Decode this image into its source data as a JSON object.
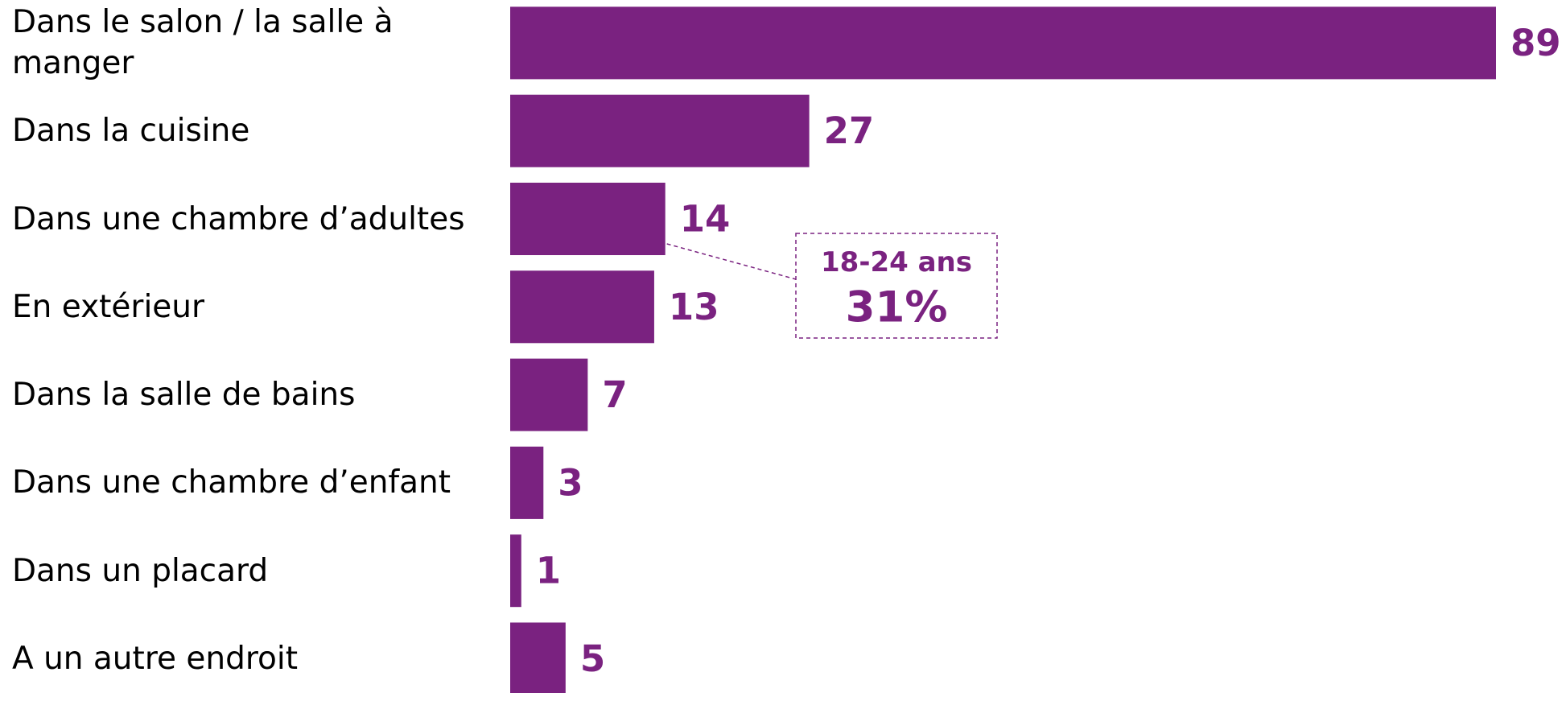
{
  "chart_data": {
    "type": "bar",
    "orientation": "horizontal",
    "color": "#7a2280",
    "categories": [
      "Dans le salon / la salle à manger",
      "Dans la cuisine",
      "Dans une chambre d’adultes",
      "En extérieur",
      "Dans la salle de bains",
      "Dans une chambre d’enfant",
      "Dans un placard",
      "A un autre endroit"
    ],
    "values": [
      89,
      27,
      14,
      13,
      7,
      3,
      1,
      5
    ],
    "annotation": {
      "text": "18-24 ans",
      "value": 31,
      "value_label": "31%"
    }
  }
}
